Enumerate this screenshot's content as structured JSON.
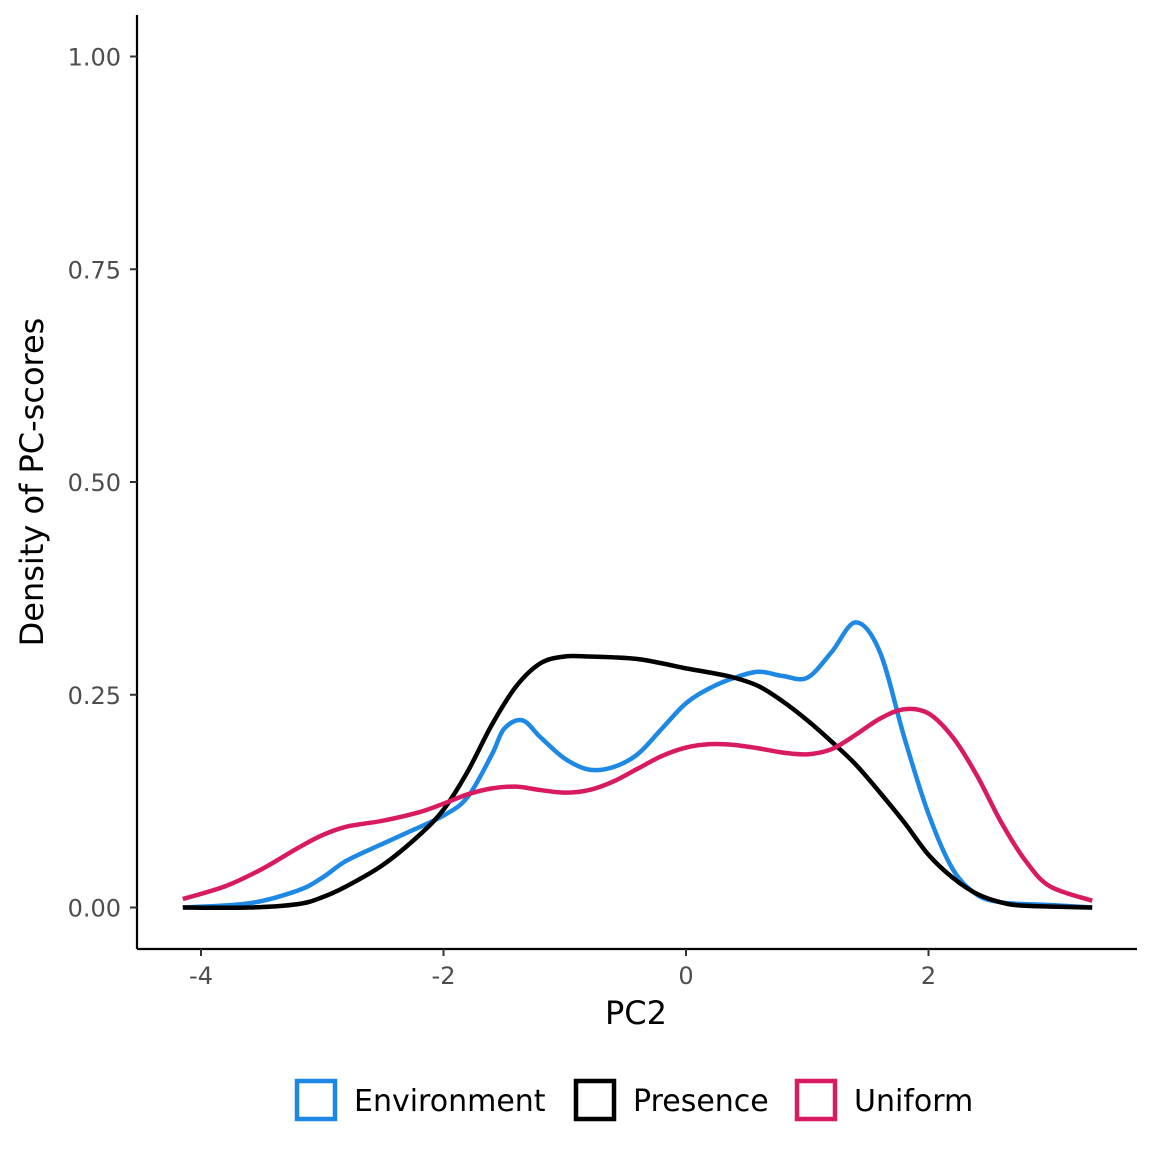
{
  "chart_data": {
    "type": "line",
    "title": "",
    "xlabel": "PC2",
    "ylabel": "Density of PC-scores",
    "xlim": [
      -4.5,
      3.7
    ],
    "ylim": [
      -0.1,
      1.05
    ],
    "x_ticks": [
      -4,
      -2,
      0,
      2
    ],
    "x_tick_labels": [
      "-4",
      "-2",
      "0",
      "2"
    ],
    "y_ticks": [
      0,
      0.25,
      0.5,
      0.75,
      1.0
    ],
    "y_tick_labels": [
      "0.00",
      "0.25",
      "0.50",
      "0.75",
      "1.00"
    ],
    "grid": false,
    "legend_position": "bottom",
    "series": [
      {
        "name": "Environment",
        "color": "#1E88E5",
        "x": [
          -4.15,
          -3.6,
          -3.2,
          -3.0,
          -2.8,
          -2.5,
          -2.3,
          -2.0,
          -1.8,
          -1.6,
          -1.5,
          -1.35,
          -1.2,
          -1.0,
          -0.8,
          -0.6,
          -0.4,
          -0.2,
          0.0,
          0.2,
          0.4,
          0.6,
          0.8,
          1.0,
          1.2,
          1.4,
          1.6,
          1.8,
          2.0,
          2.2,
          2.4,
          2.6,
          2.8,
          3.0,
          3.35
        ],
        "y": [
          0.0,
          0.005,
          0.02,
          0.035,
          0.055,
          0.075,
          0.088,
          0.108,
          0.13,
          0.18,
          0.21,
          0.22,
          0.2,
          0.175,
          0.162,
          0.165,
          0.18,
          0.21,
          0.24,
          0.258,
          0.27,
          0.277,
          0.272,
          0.27,
          0.3,
          0.335,
          0.3,
          0.2,
          0.11,
          0.045,
          0.015,
          0.006,
          0.004,
          0.003,
          0.0
        ]
      },
      {
        "name": "Presence",
        "color": "#000000",
        "x": [
          -4.15,
          -3.6,
          -3.2,
          -3.0,
          -2.8,
          -2.5,
          -2.2,
          -2.0,
          -1.8,
          -1.6,
          -1.4,
          -1.2,
          -1.0,
          -0.8,
          -0.6,
          -0.4,
          -0.2,
          0.0,
          0.2,
          0.4,
          0.6,
          0.8,
          1.0,
          1.2,
          1.4,
          1.6,
          1.8,
          2.0,
          2.2,
          2.4,
          2.6,
          2.8,
          3.35
        ],
        "y": [
          0.0,
          0.0,
          0.004,
          0.012,
          0.025,
          0.05,
          0.085,
          0.115,
          0.16,
          0.215,
          0.26,
          0.287,
          0.295,
          0.295,
          0.294,
          0.292,
          0.287,
          0.281,
          0.276,
          0.27,
          0.26,
          0.242,
          0.22,
          0.195,
          0.168,
          0.135,
          0.1,
          0.062,
          0.035,
          0.016,
          0.006,
          0.002,
          0.0
        ]
      },
      {
        "name": "Uniform",
        "color": "#D81B60",
        "x": [
          -4.15,
          -3.8,
          -3.5,
          -3.2,
          -3.0,
          -2.8,
          -2.5,
          -2.2,
          -2.0,
          -1.8,
          -1.6,
          -1.4,
          -1.2,
          -1.0,
          -0.8,
          -0.6,
          -0.4,
          -0.2,
          0.0,
          0.2,
          0.4,
          0.6,
          0.8,
          1.0,
          1.2,
          1.4,
          1.6,
          1.8,
          2.0,
          2.2,
          2.4,
          2.6,
          2.8,
          3.0,
          3.35
        ],
        "y": [
          0.01,
          0.025,
          0.045,
          0.07,
          0.085,
          0.095,
          0.102,
          0.112,
          0.122,
          0.133,
          0.14,
          0.142,
          0.138,
          0.135,
          0.138,
          0.148,
          0.163,
          0.178,
          0.188,
          0.192,
          0.191,
          0.187,
          0.182,
          0.18,
          0.186,
          0.203,
          0.222,
          0.233,
          0.228,
          0.2,
          0.155,
          0.1,
          0.055,
          0.025,
          0.008
        ]
      }
    ]
  }
}
